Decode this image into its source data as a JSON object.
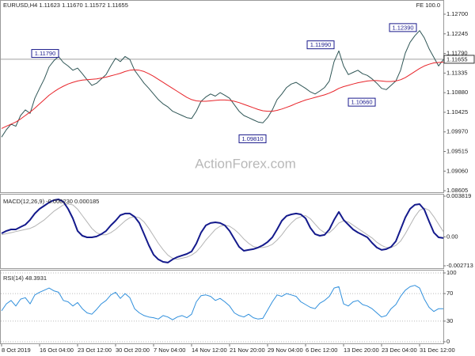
{
  "chart_data": [
    {
      "type": "line",
      "title": "EURUSD,H4  1.11623 1.11670 1.11572 1.11655",
      "subtitle": "FE 100.0",
      "watermark": "ActionForex.com",
      "ylim": [
        1.0857,
        1.1303
      ],
      "yticks": [
        {
          "value": 1.127,
          "label": "1.12700"
        },
        {
          "value": 1.12245,
          "label": "1.12245"
        },
        {
          "value": 1.1179,
          "label": "1.11790"
        },
        {
          "value": 1.11335,
          "label": "1.11335"
        },
        {
          "value": 1.1088,
          "label": "1.10880"
        },
        {
          "value": 1.10425,
          "label": "1.10425"
        },
        {
          "value": 1.0997,
          "label": "1.09970"
        },
        {
          "value": 1.09515,
          "label": "1.09515"
        },
        {
          "value": 1.0906,
          "label": "1.09060"
        },
        {
          "value": 1.08605,
          "label": "1.08605"
        }
      ],
      "grid": false,
      "current_price": 1.11655,
      "annotations": [
        {
          "value": 1.1179,
          "label": "1.11790"
        },
        {
          "value": 1.0981,
          "label": "1.09810"
        },
        {
          "value": 1.1199,
          "label": "1.11990"
        },
        {
          "value": 1.1239,
          "label": "1.12390"
        },
        {
          "value": 1.1066,
          "label": "1.10660"
        }
      ],
      "series": [
        {
          "color": "#2f5656",
          "line_width": 1,
          "values": [
            1.0985,
            1.1002,
            1.1015,
            1.101,
            1.1035,
            1.1048,
            1.104,
            1.1075,
            1.1098,
            1.112,
            1.1148,
            1.1162,
            1.1172,
            1.1158,
            1.115,
            1.114,
            1.1145,
            1.1132,
            1.1118,
            1.1105,
            1.111,
            1.112,
            1.113,
            1.115,
            1.1168,
            1.116,
            1.1172,
            1.1165,
            1.114,
            1.1125,
            1.111,
            1.1098,
            1.1085,
            1.1072,
            1.1062,
            1.1055,
            1.1045,
            1.104,
            1.1035,
            1.103,
            1.1028,
            1.1045,
            1.1068,
            1.1078,
            1.1085,
            1.108,
            1.1088,
            1.1082,
            1.1075,
            1.106,
            1.1045,
            1.1035,
            1.103,
            1.1025,
            1.102,
            1.1018,
            1.103,
            1.1048,
            1.1072,
            1.1085,
            1.11,
            1.1108,
            1.1112,
            1.1105,
            1.1098,
            1.109,
            1.1085,
            1.1092,
            1.11,
            1.1115,
            1.116,
            1.1185,
            1.115,
            1.113,
            1.1135,
            1.114,
            1.1132,
            1.1128,
            1.112,
            1.111,
            1.1098,
            1.1095,
            1.1105,
            1.1115,
            1.114,
            1.118,
            1.1205,
            1.122,
            1.1232,
            1.1215,
            1.119,
            1.117,
            1.115,
            1.1165
          ]
        },
        {
          "color": "#e8242a",
          "line_width": 1,
          "values": [
            1.1005,
            1.101,
            1.1015,
            1.102,
            1.1027,
            1.1035,
            1.1043,
            1.1052,
            1.1062,
            1.1072,
            1.1082,
            1.109,
            1.1097,
            1.1103,
            1.1108,
            1.1112,
            1.1115,
            1.1117,
            1.1118,
            1.1119,
            1.112,
            1.1122,
            1.1124,
            1.1127,
            1.113,
            1.1133,
            1.1137,
            1.114,
            1.1141,
            1.114,
            1.1137,
            1.1132,
            1.1126,
            1.1119,
            1.1112,
            1.1105,
            1.1098,
            1.1091,
            1.1084,
            1.1077,
            1.1072,
            1.1069,
            1.1068,
            1.1068,
            1.1069,
            1.107,
            1.1071,
            1.1071,
            1.107,
            1.1068,
            1.1065,
            1.1061,
            1.1057,
            1.1053,
            1.1049,
            1.1046,
            1.1045,
            1.1045,
            1.1047,
            1.105,
            1.1054,
            1.1058,
            1.1063,
            1.1067,
            1.1071,
            1.1074,
            1.1077,
            1.108,
            1.1083,
            1.1087,
            1.1092,
            1.1098,
            1.1102,
            1.1105,
            1.1108,
            1.1111,
            1.1113,
            1.1115,
            1.1116,
            1.1116,
            1.1115,
            1.1114,
            1.1114,
            1.1115,
            1.1118,
            1.1123,
            1.113,
            1.1137,
            1.1144,
            1.115,
            1.1154,
            1.1157,
            1.1158,
            1.1159
          ]
        }
      ]
    },
    {
      "type": "line",
      "title": "MACD(12,26,9) -0.000230 0.000185",
      "ylim": [
        -0.002713,
        0.003819
      ],
      "yticks": [
        -0.002713,
        {
          "value": 0,
          "label": "0.00"
        },
        0.003819
      ],
      "grid": false,
      "series": [
        {
          "color": "#b4b4b4",
          "line_width": 1,
          "values": [
            0.0002,
            0.0003,
            0.0004,
            0.0005,
            0.0006,
            0.0007,
            0.0008,
            0.001,
            0.0013,
            0.0016,
            0.002,
            0.0024,
            0.0027,
            0.003,
            0.0031,
            0.003,
            0.0026,
            0.002,
            0.0014,
            0.0008,
            0.0004,
            0.0002,
            0.0002,
            0.0004,
            0.0007,
            0.0011,
            0.0015,
            0.0018,
            0.0019,
            0.0018,
            0.0014,
            0.0008,
            0.0001,
            -0.0006,
            -0.0012,
            -0.0017,
            -0.002,
            -0.0021,
            -0.002,
            -0.0019,
            -0.0017,
            -0.0014,
            -0.0009,
            -0.0003,
            0.0002,
            0.0007,
            0.001,
            0.0011,
            0.001,
            0.0007,
            0.0003,
            -0.0002,
            -0.0006,
            -0.0009,
            -0.001,
            -0.001,
            -0.0009,
            -0.0007,
            -0.0003,
            0.0002,
            0.0008,
            0.0013,
            0.0017,
            0.0019,
            0.002,
            0.0017,
            0.0012,
            0.0007,
            0.0004,
            0.0004,
            0.0008,
            0.0013,
            0.0015,
            0.0014,
            0.0011,
            0.0008,
            0.0005,
            0.0002,
            -0.0001,
            -0.0005,
            -0.0008,
            -0.001,
            -0.001,
            -0.0008,
            -0.0004,
            0.0003,
            0.0011,
            0.0019,
            0.0025,
            0.0027,
            0.0025,
            0.0019,
            0.0012,
            0.0005
          ]
        },
        {
          "color": "#141a8c",
          "line_width": 2,
          "values": [
            0.00033,
            0.00056,
            0.0007,
            0.0007,
            0.00093,
            0.00115,
            0.0016,
            0.00219,
            0.00263,
            0.00293,
            0.00323,
            0.00345,
            0.00352,
            0.0033,
            0.00263,
            0.00174,
            0.00056,
            0.00011,
            -4e-05,
            -4e-05,
            4e-05,
            0.00026,
            0.00056,
            0.00108,
            0.00152,
            0.00204,
            0.00219,
            0.00219,
            0.00189,
            0.0013,
            0.00026,
            -0.00078,
            -0.00167,
            -0.00211,
            -0.00234,
            -0.00241,
            -0.00211,
            -0.00189,
            -0.00174,
            -0.0016,
            -0.00137,
            -0.00063,
            0.00041,
            0.00108,
            0.0013,
            0.00137,
            0.0013,
            0.00108,
            0.00056,
            -0.00019,
            -0.00093,
            -0.0013,
            -0.00122,
            -0.00115,
            -0.001,
            -0.00078,
            -0.00048,
            -4e-05,
            0.0007,
            0.00152,
            0.00197,
            0.00211,
            0.00219,
            0.00211,
            0.00174,
            0.00085,
            0.00026,
            0.00011,
            0.00019,
            0.0007,
            0.0016,
            0.00234,
            0.0016,
            0.00115,
            0.0007,
            0.00041,
            0.00019,
            -4e-05,
            -0.00056,
            -0.001,
            -0.00122,
            -0.00115,
            -0.00093,
            -0.00041,
            0.0007,
            0.00182,
            0.00263,
            0.00301,
            0.00308,
            0.00256,
            0.00145,
            0.00041,
            -4e-05,
            -0.00011
          ]
        }
      ]
    },
    {
      "type": "line",
      "title": "RSI(14) 48.3931",
      "ylim": [
        0,
        100
      ],
      "yticks": [
        0,
        30,
        70,
        100
      ],
      "grid": true,
      "categories": [
        "8 Oct 2019",
        null,
        null,
        null,
        null,
        null,
        null,
        null,
        "16 Oct 04:00",
        null,
        null,
        null,
        null,
        null,
        null,
        null,
        "23 Oct 12:00",
        null,
        null,
        null,
        null,
        null,
        null,
        null,
        "30 Oct 20:00",
        null,
        null,
        null,
        null,
        null,
        null,
        null,
        "7 Nov 04:00",
        null,
        null,
        null,
        null,
        null,
        null,
        null,
        "14 Nov 12:00",
        null,
        null,
        null,
        null,
        null,
        null,
        null,
        "21 Nov 20:00",
        null,
        null,
        null,
        null,
        null,
        null,
        null,
        "29 Nov 04:00",
        null,
        null,
        null,
        null,
        null,
        null,
        null,
        "6 Dec 12:00",
        null,
        null,
        null,
        null,
        null,
        null,
        null,
        "13 Dec 20:00",
        null,
        null,
        null,
        null,
        null,
        null,
        null,
        "23 Dec 04:00",
        null,
        null,
        null,
        null,
        null,
        null,
        null,
        "31 Dec 12:00",
        null,
        null,
        null,
        null,
        null
      ],
      "series": [
        {
          "color": "#2f8fdc",
          "line_width": 1,
          "values": [
            45,
            55,
            60,
            52,
            62,
            64,
            55,
            68,
            72,
            75,
            78,
            74,
            72,
            60,
            58,
            52,
            57,
            48,
            42,
            40,
            47,
            55,
            60,
            68,
            72,
            63,
            70,
            64,
            48,
            42,
            38,
            36,
            35,
            33,
            38,
            36,
            32,
            36,
            38,
            35,
            40,
            58,
            67,
            68,
            66,
            60,
            63,
            58,
            52,
            42,
            38,
            36,
            40,
            35,
            33,
            34,
            46,
            58,
            68,
            66,
            70,
            68,
            66,
            58,
            54,
            50,
            48,
            56,
            60,
            66,
            78,
            80,
            55,
            52,
            58,
            60,
            54,
            52,
            48,
            42,
            36,
            38,
            48,
            54,
            66,
            75,
            80,
            82,
            78,
            62,
            50,
            44,
            48,
            48
          ]
        }
      ]
    }
  ]
}
